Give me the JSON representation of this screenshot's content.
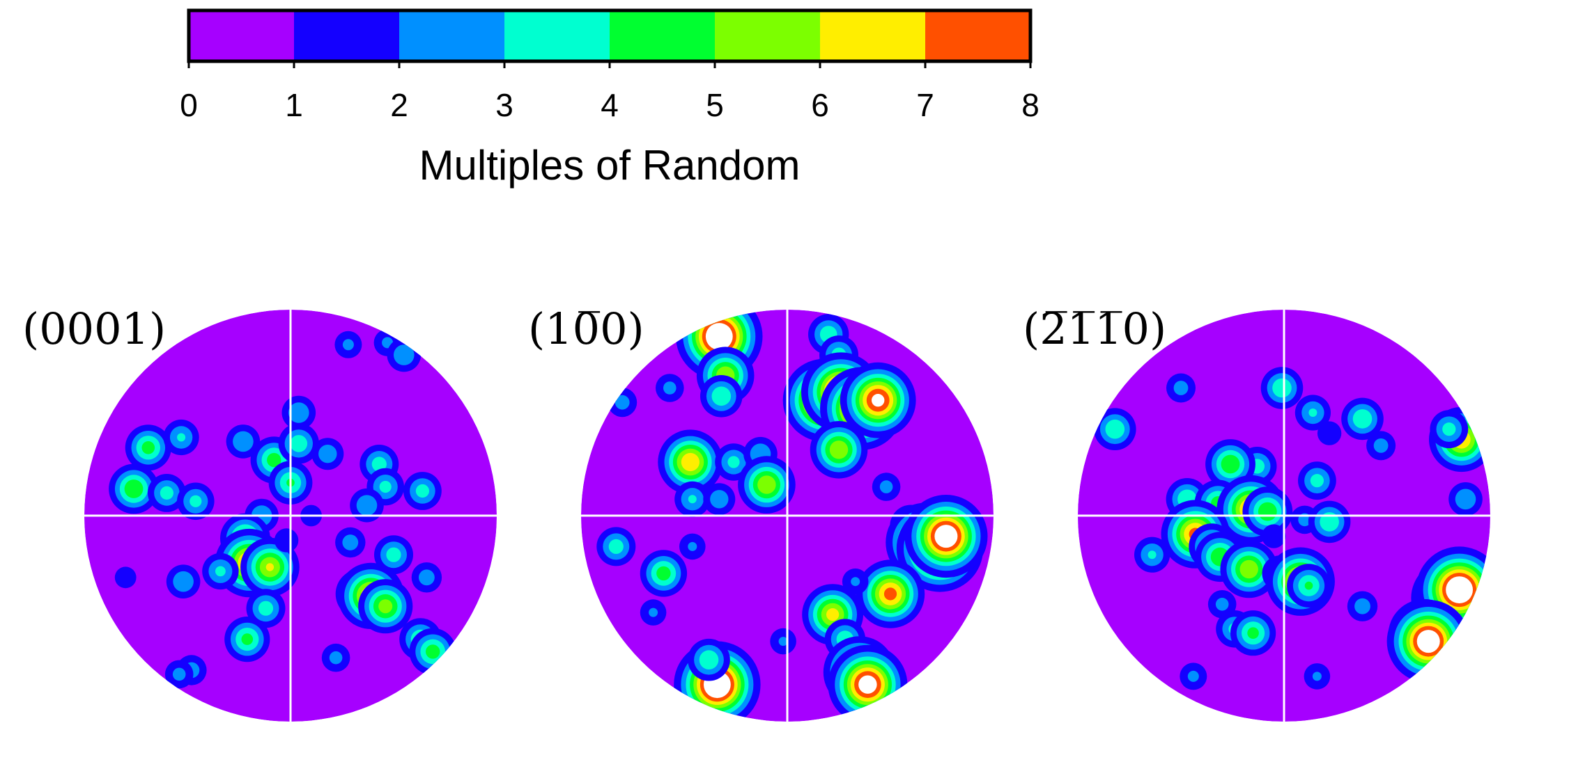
{
  "chart_data": {
    "type": "heatmap",
    "colorbar": {
      "label": "Multiples of Random",
      "ticks": [
        "0",
        "1",
        "2",
        "3",
        "4",
        "5",
        "6",
        "7",
        "8"
      ],
      "range": [
        0,
        8
      ],
      "colors": [
        "#a600ff",
        "#1400ff",
        "#0090ff",
        "#00ffd0",
        "#00ff30",
        "#7cff00",
        "#ffee00",
        "#ff5000"
      ],
      "above_max_color": "#ffffff"
    },
    "panels": [
      {
        "title": "(0001)",
        "spots": [
          {
            "x": -0.69,
            "y": 0.33,
            "peak": 4.5
          },
          {
            "x": -0.53,
            "y": 0.38,
            "peak": 3.2
          },
          {
            "x": -0.76,
            "y": 0.13,
            "peak": 5.0
          },
          {
            "x": -0.6,
            "y": 0.11,
            "peak": 3.5
          },
          {
            "x": -0.46,
            "y": 0.07,
            "peak": 3.4
          },
          {
            "x": -0.23,
            "y": 0.36,
            "peak": 3.0
          },
          {
            "x": -0.08,
            "y": 0.27,
            "peak": 4.6
          },
          {
            "x": 0.04,
            "y": 0.5,
            "peak": 3.0
          },
          {
            "x": 0.04,
            "y": 0.35,
            "peak": 3.8
          },
          {
            "x": 0.0,
            "y": 0.16,
            "peak": 4.2
          },
          {
            "x": 0.18,
            "y": 0.3,
            "peak": 2.8
          },
          {
            "x": -0.14,
            "y": 0.0,
            "peak": 3.0
          },
          {
            "x": -0.22,
            "y": -0.11,
            "peak": 5.0
          },
          {
            "x": -0.2,
            "y": -0.23,
            "peak": 7.5
          },
          {
            "x": -0.1,
            "y": -0.25,
            "peak": 6.2
          },
          {
            "x": -0.34,
            "y": -0.27,
            "peak": 3.3
          },
          {
            "x": -0.52,
            "y": -0.32,
            "peak": 3.0
          },
          {
            "x": 0.43,
            "y": 0.25,
            "peak": 3.6
          },
          {
            "x": 0.46,
            "y": 0.14,
            "peak": 3.4
          },
          {
            "x": 0.64,
            "y": 0.12,
            "peak": 3.5
          },
          {
            "x": 0.37,
            "y": 0.05,
            "peak": 3.0
          },
          {
            "x": 0.29,
            "y": -0.13,
            "peak": 2.6
          },
          {
            "x": 0.5,
            "y": -0.19,
            "peak": 3.6
          },
          {
            "x": 0.34,
            "y": -0.38,
            "peak": 5.0
          },
          {
            "x": 0.39,
            "y": -0.39,
            "peak": 7.2
          },
          {
            "x": 0.46,
            "y": -0.44,
            "peak": 5.6
          },
          {
            "x": 0.66,
            "y": -0.3,
            "peak": 2.6
          },
          {
            "x": 0.63,
            "y": -0.6,
            "peak": 4.0
          },
          {
            "x": 0.69,
            "y": -0.66,
            "peak": 4.6
          },
          {
            "x": -0.12,
            "y": -0.45,
            "peak": 3.6
          },
          {
            "x": -0.21,
            "y": -0.6,
            "peak": 4.4
          },
          {
            "x": -0.48,
            "y": -0.75,
            "peak": 2.6
          },
          {
            "x": -0.54,
            "y": -0.77,
            "peak": 2.4
          },
          {
            "x": 0.22,
            "y": -0.69,
            "peak": 2.4
          },
          {
            "x": 0.47,
            "y": 0.84,
            "peak": 2.3
          },
          {
            "x": 0.55,
            "y": 0.78,
            "peak": 3.0
          },
          {
            "x": 0.28,
            "y": 0.83,
            "peak": 2.3
          },
          {
            "x": -0.8,
            "y": -0.3,
            "peak": 1.8
          },
          {
            "x": 0.1,
            "y": 0.0,
            "peak": 1.8
          },
          {
            "x": -0.02,
            "y": -0.12,
            "peak": 2.0
          }
        ]
      },
      {
        "title": "(10̅0)",
        "spots": [
          {
            "x": -0.33,
            "y": 0.87,
            "peak": 10.0
          },
          {
            "x": -0.3,
            "y": 0.68,
            "peak": 6.0
          },
          {
            "x": -0.32,
            "y": 0.58,
            "peak": 4.0
          },
          {
            "x": 0.2,
            "y": 0.88,
            "peak": 3.8
          },
          {
            "x": 0.25,
            "y": 0.78,
            "peak": 3.6
          },
          {
            "x": 0.2,
            "y": 0.56,
            "peak": 2.6
          },
          {
            "x": 0.18,
            "y": 0.56,
            "peak": 9.5
          },
          {
            "x": 0.26,
            "y": 0.6,
            "peak": 9.0
          },
          {
            "x": 0.36,
            "y": 0.52,
            "peak": 9.5
          },
          {
            "x": 0.44,
            "y": 0.56,
            "peak": 8.5
          },
          {
            "x": 0.25,
            "y": 0.32,
            "peak": 6.0
          },
          {
            "x": -0.47,
            "y": 0.26,
            "peak": 7.0
          },
          {
            "x": -0.26,
            "y": 0.26,
            "peak": 3.4
          },
          {
            "x": -0.13,
            "y": 0.3,
            "peak": 3.0
          },
          {
            "x": -0.1,
            "y": 0.15,
            "peak": 6.0
          },
          {
            "x": -0.46,
            "y": 0.08,
            "peak": 3.2
          },
          {
            "x": -0.33,
            "y": 0.08,
            "peak": 2.8
          },
          {
            "x": 0.48,
            "y": 0.14,
            "peak": 2.4
          },
          {
            "x": -0.83,
            "y": -0.15,
            "peak": 3.6
          },
          {
            "x": -0.6,
            "y": -0.28,
            "peak": 4.6
          },
          {
            "x": -0.46,
            "y": -0.15,
            "peak": 2.2
          },
          {
            "x": -0.65,
            "y": -0.47,
            "peak": 2.2
          },
          {
            "x": 0.6,
            "y": -0.05,
            "peak": 4.0
          },
          {
            "x": 0.67,
            "y": -0.13,
            "peak": 9.0
          },
          {
            "x": 0.74,
            "y": -0.16,
            "peak": 10.0
          },
          {
            "x": 0.77,
            "y": -0.1,
            "peak": 9.5
          },
          {
            "x": 0.5,
            "y": -0.38,
            "peak": 7.5
          },
          {
            "x": 0.33,
            "y": -0.32,
            "peak": 2.2
          },
          {
            "x": 0.22,
            "y": -0.48,
            "peak": 6.5
          },
          {
            "x": 0.28,
            "y": -0.6,
            "peak": 3.8
          },
          {
            "x": 0.35,
            "y": -0.76,
            "peak": 8.0
          },
          {
            "x": 0.39,
            "y": -0.82,
            "peak": 9.0
          },
          {
            "x": -0.34,
            "y": -0.82,
            "peak": 10.0
          },
          {
            "x": -0.38,
            "y": -0.7,
            "peak": 4.0
          },
          {
            "x": -0.02,
            "y": -0.61,
            "peak": 2.2
          },
          {
            "x": -0.8,
            "y": 0.55,
            "peak": 2.5
          },
          {
            "x": -0.57,
            "y": 0.62,
            "peak": 2.4
          }
        ]
      },
      {
        "title": "(2̅1̅1̅0)",
        "spots": [
          {
            "x": -0.82,
            "y": 0.42,
            "peak": 4.0
          },
          {
            "x": -0.5,
            "y": 0.62,
            "peak": 2.5
          },
          {
            "x": -0.01,
            "y": 0.62,
            "peak": 4.0
          },
          {
            "x": 0.14,
            "y": 0.5,
            "peak": 3.2
          },
          {
            "x": 0.38,
            "y": 0.47,
            "peak": 4.0
          },
          {
            "x": 0.47,
            "y": 0.34,
            "peak": 2.5
          },
          {
            "x": 0.86,
            "y": 0.37,
            "peak": 7.0
          },
          {
            "x": 0.8,
            "y": 0.42,
            "peak": 3.5
          },
          {
            "x": 0.88,
            "y": 0.08,
            "peak": 3.0
          },
          {
            "x": -0.13,
            "y": 0.24,
            "peak": 3.6
          },
          {
            "x": -0.26,
            "y": 0.25,
            "peak": 5.0
          },
          {
            "x": 0.16,
            "y": 0.17,
            "peak": 3.5
          },
          {
            "x": -0.47,
            "y": 0.08,
            "peak": 4.0
          },
          {
            "x": -0.32,
            "y": 0.06,
            "peak": 4.6
          },
          {
            "x": -0.16,
            "y": 0.03,
            "peak": 7.5
          },
          {
            "x": -0.08,
            "y": 0.02,
            "peak": 5.0
          },
          {
            "x": 0.1,
            "y": -0.02,
            "peak": 2.4
          },
          {
            "x": 0.22,
            "y": -0.03,
            "peak": 4.0
          },
          {
            "x": -0.43,
            "y": -0.09,
            "peak": 7.5
          },
          {
            "x": -0.35,
            "y": -0.15,
            "peak": 4.5
          },
          {
            "x": -0.31,
            "y": -0.2,
            "peak": 5.0
          },
          {
            "x": -0.17,
            "y": -0.26,
            "peak": 6.0
          },
          {
            "x": -0.02,
            "y": -0.28,
            "peak": 3.2
          },
          {
            "x": 0.08,
            "y": -0.32,
            "peak": 7.5
          },
          {
            "x": 0.12,
            "y": -0.34,
            "peak": 4.2
          },
          {
            "x": -0.64,
            "y": -0.19,
            "peak": 3.2
          },
          {
            "x": -0.3,
            "y": -0.43,
            "peak": 2.4
          },
          {
            "x": -0.24,
            "y": -0.55,
            "peak": 3.4
          },
          {
            "x": -0.15,
            "y": -0.57,
            "peak": 4.4
          },
          {
            "x": 0.38,
            "y": -0.44,
            "peak": 2.6
          },
          {
            "x": 0.8,
            "y": -0.4,
            "peak": 8.5
          },
          {
            "x": 0.85,
            "y": -0.36,
            "peak": 10.0
          },
          {
            "x": 0.68,
            "y": -0.58,
            "peak": 8.0
          },
          {
            "x": 0.7,
            "y": -0.61,
            "peak": 9.5
          },
          {
            "x": -0.44,
            "y": -0.78,
            "peak": 2.3
          },
          {
            "x": 0.16,
            "y": -0.78,
            "peak": 2.2
          },
          {
            "x": 0.22,
            "y": 0.4,
            "peak": 2.0
          },
          {
            "x": -0.05,
            "y": -0.1,
            "peak": 2.0
          }
        ]
      }
    ]
  }
}
